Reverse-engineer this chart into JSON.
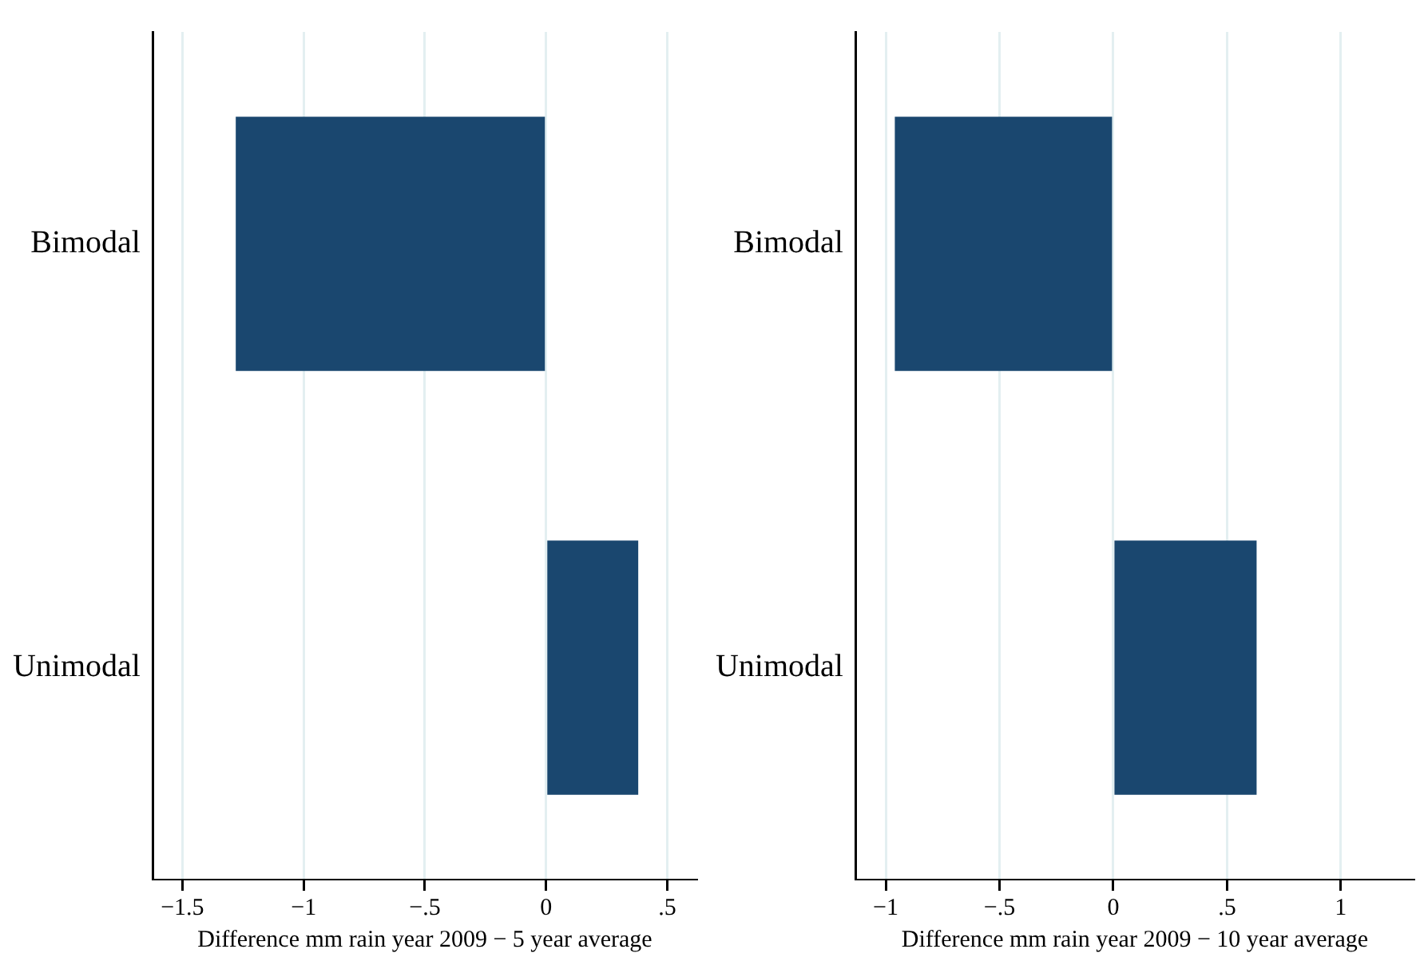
{
  "chart_data": [
    {
      "type": "bar",
      "orientation": "horizontal",
      "categories": [
        "Bimodal",
        "Unimodal"
      ],
      "values": [
        -1.28,
        0.38
      ],
      "color": "#1a476f",
      "xlabel": "Difference mm rain year 2009 − 5 year average",
      "xlim": [
        -1.62,
        0.62
      ],
      "xticks": [
        {
          "value": -1.5,
          "label": "−1.5"
        },
        {
          "value": -1,
          "label": "−1"
        },
        {
          "value": -0.5,
          "label": "−.5"
        },
        {
          "value": 0,
          "label": "0"
        },
        {
          "value": 0.5,
          "label": ".5"
        }
      ],
      "grid": "x"
    },
    {
      "type": "bar",
      "orientation": "horizontal",
      "categories": [
        "Bimodal",
        "Unimodal"
      ],
      "values": [
        -0.96,
        0.63
      ],
      "color": "#1a476f",
      "xlabel": "Difference mm rain year 2009 − 10 year average",
      "xlim": [
        -1.13,
        1.32
      ],
      "xticks": [
        {
          "value": -1,
          "label": "−1"
        },
        {
          "value": -0.5,
          "label": "−.5"
        },
        {
          "value": 0,
          "label": "0"
        },
        {
          "value": 0.5,
          "label": ".5"
        },
        {
          "value": 1,
          "label": "1"
        }
      ],
      "grid": "x"
    }
  ]
}
